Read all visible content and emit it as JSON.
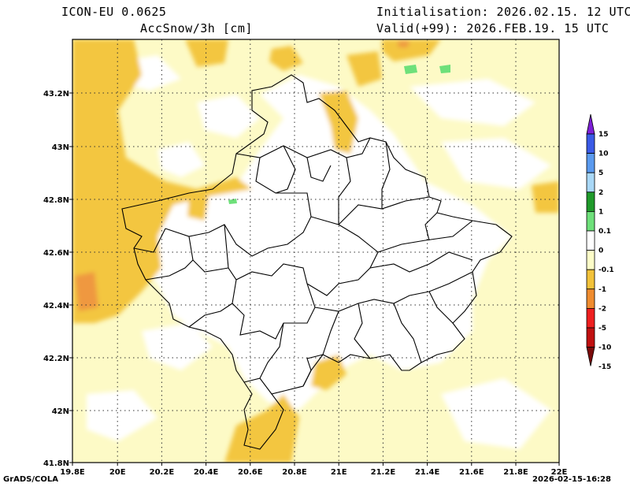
{
  "header": {
    "model": "ICON-EU 0.0625",
    "variable": "AccSnow/3h [cm]",
    "initialisation": "Initialisation: 2026.02.15. 12 UTC",
    "valid": "Valid(+99): 2026.FEB.19. 15 UTC"
  },
  "footer": {
    "credit": "GrADS/COLA",
    "timestamp": "2026-02-15-16:28"
  },
  "axes": {
    "lon_labels": [
      "19.8E",
      "20E",
      "20.2E",
      "20.4E",
      "20.6E",
      "20.8E",
      "21E",
      "21.2E",
      "21.4E",
      "21.6E",
      "21.8E",
      "22E"
    ],
    "lat_labels": [
      "41.8N",
      "42N",
      "42.2N",
      "42.4N",
      "42.6N",
      "42.8N",
      "43N",
      "43.2N"
    ]
  },
  "colorbar": {
    "labels": [
      "15",
      "10",
      "5",
      "2",
      "1",
      "0.1",
      "0",
      "-0.1",
      "-1",
      "-2",
      "-5",
      "-10",
      "-15"
    ],
    "colors": [
      "#7d1fd6",
      "#3a5ae6",
      "#5a9aef",
      "#a9d8f7",
      "#1f9a2a",
      "#6ee07a",
      "#ffffff",
      "#fdfdc8",
      "#f2c23a",
      "#ef8c2f",
      "#ee1f1f",
      "#c01010",
      "#7a0a0a"
    ]
  },
  "legend_colors": {
    "light": "#fdfac6",
    "medium": "#f3c640",
    "strong": "#ef9840",
    "green": "#6ee07a"
  }
}
